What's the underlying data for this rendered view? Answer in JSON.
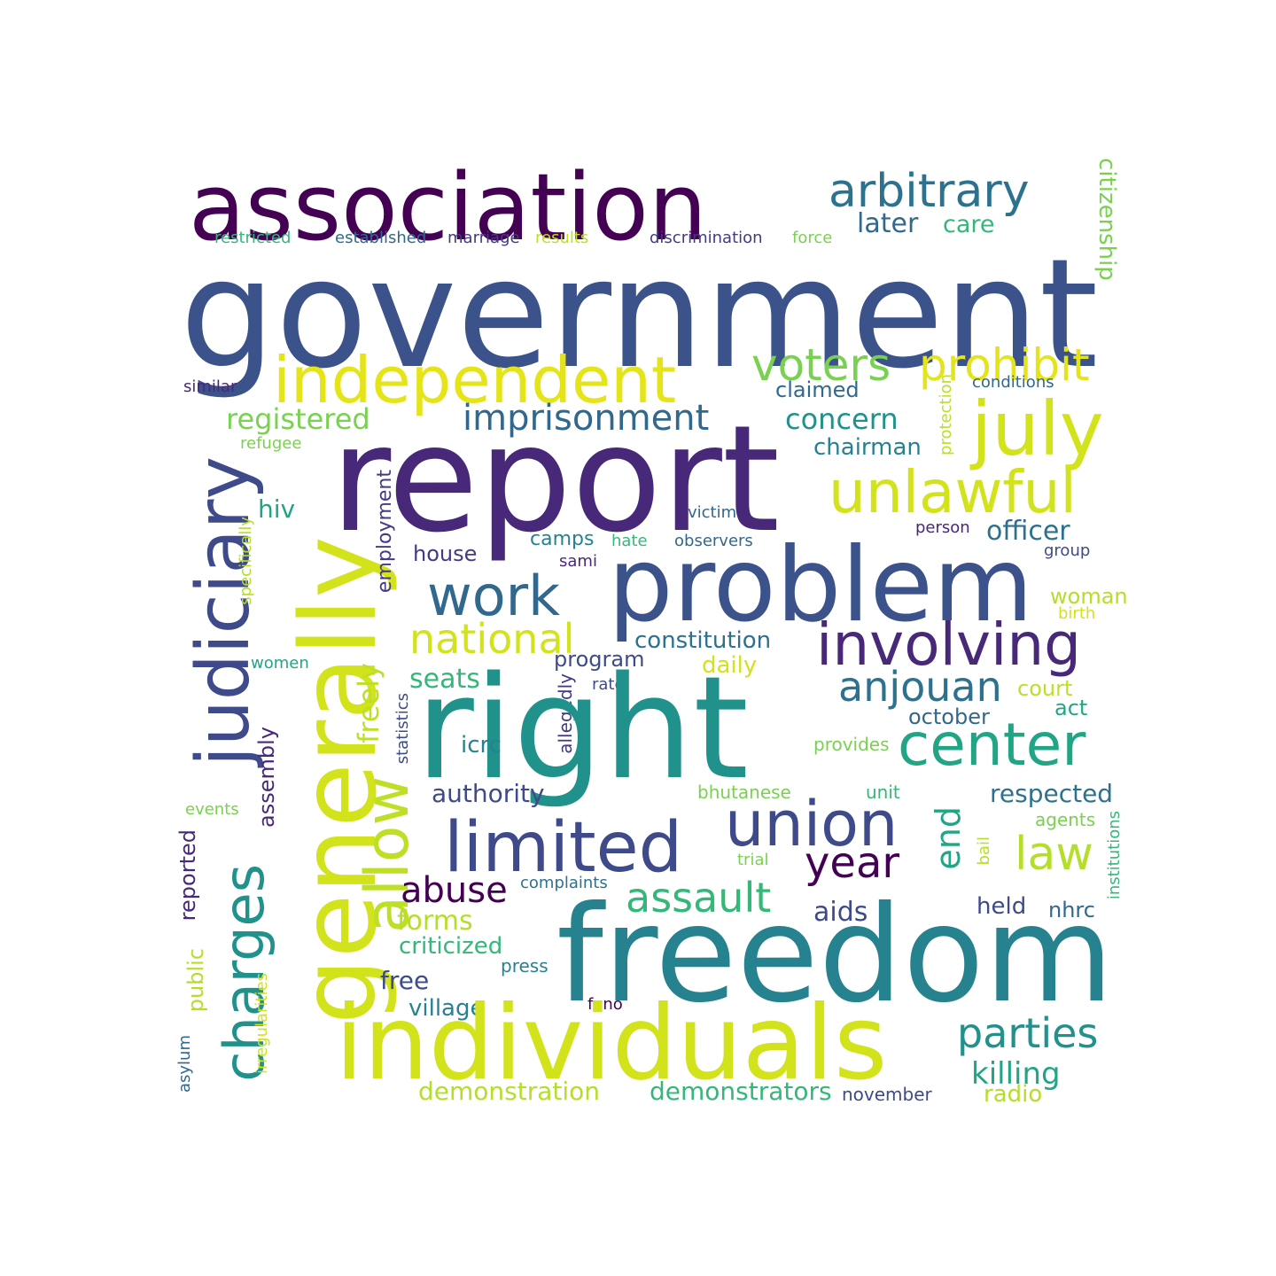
{
  "words": [
    {
      "text": "association",
      "color": "#440154"
    },
    {
      "text": "arbitrary",
      "color": "#2c728e"
    },
    {
      "text": "citizenship",
      "color": "#7ad151"
    },
    {
      "text": "later",
      "color": "#31688e"
    },
    {
      "text": "care",
      "color": "#35b779"
    },
    {
      "text": "restricted",
      "color": "#35b779"
    },
    {
      "text": "established",
      "color": "#31688e"
    },
    {
      "text": "marriage",
      "color": "#443983"
    },
    {
      "text": "results",
      "color": "#bddf26"
    },
    {
      "text": "discrimination",
      "color": "#443983"
    },
    {
      "text": "force",
      "color": "#7ad151"
    },
    {
      "text": "government",
      "color": "#3b528b"
    },
    {
      "text": "independent",
      "color": "#e5e419"
    },
    {
      "text": "voters",
      "color": "#7ad151"
    },
    {
      "text": "prohibit",
      "color": "#e5e419"
    },
    {
      "text": "similar",
      "color": "#482878"
    },
    {
      "text": "claimed",
      "color": "#31688e"
    },
    {
      "text": "conditions",
      "color": "#31688e"
    },
    {
      "text": "protection",
      "color": "#bddf26"
    },
    {
      "text": "registered",
      "color": "#7ad151"
    },
    {
      "text": "imprisonment",
      "color": "#31688e"
    },
    {
      "text": "concern",
      "color": "#21918c"
    },
    {
      "text": "july",
      "color": "#d2e21b"
    },
    {
      "text": "refugee",
      "color": "#7ad151"
    },
    {
      "text": "report",
      "color": "#482878"
    },
    {
      "text": "chairman",
      "color": "#26828e"
    },
    {
      "text": "judiciary",
      "color": "#3e4a89"
    },
    {
      "text": "unlawful",
      "color": "#d2e21b"
    },
    {
      "text": "hiv",
      "color": "#21a585"
    },
    {
      "text": "generally",
      "color": "#d2e21b"
    },
    {
      "text": "employment",
      "color": "#443983"
    },
    {
      "text": "victim",
      "color": "#31688e"
    },
    {
      "text": "specifically",
      "color": "#b5de2b"
    },
    {
      "text": "person",
      "color": "#482878"
    },
    {
      "text": "observers",
      "color": "#31688e"
    },
    {
      "text": "officer",
      "color": "#2c728e"
    },
    {
      "text": "camps",
      "color": "#26828e"
    },
    {
      "text": "hate",
      "color": "#35b779"
    },
    {
      "text": "house",
      "color": "#443983"
    },
    {
      "text": "group",
      "color": "#3e4a89"
    },
    {
      "text": "sami",
      "color": "#482878"
    },
    {
      "text": "problem",
      "color": "#3b528b"
    },
    {
      "text": "work",
      "color": "#31688e"
    },
    {
      "text": "woman",
      "color": "#b5de2b"
    },
    {
      "text": "birth",
      "color": "#d2e21b"
    },
    {
      "text": "national",
      "color": "#d2e21b"
    },
    {
      "text": "involving",
      "color": "#482878"
    },
    {
      "text": "constitution",
      "color": "#2c728e"
    },
    {
      "text": "women",
      "color": "#21a585"
    },
    {
      "text": "program",
      "color": "#3e4a89"
    },
    {
      "text": "daily",
      "color": "#d2e21b"
    },
    {
      "text": "rate",
      "color": "#3e4a89"
    },
    {
      "text": "seats",
      "color": "#35b779"
    },
    {
      "text": "anjouan",
      "color": "#2c728e"
    },
    {
      "text": "court",
      "color": "#bddf26"
    },
    {
      "text": "freely",
      "color": "#bddf26"
    },
    {
      "text": "allegedly",
      "color": "#443983"
    },
    {
      "text": "act",
      "color": "#21a585"
    },
    {
      "text": "october",
      "color": "#31688e"
    },
    {
      "text": "right",
      "color": "#21918c"
    },
    {
      "text": "statistics",
      "color": "#3e4a89"
    },
    {
      "text": "assembly",
      "color": "#482878"
    },
    {
      "text": "center",
      "color": "#21a585"
    },
    {
      "text": "icrc",
      "color": "#26828e"
    },
    {
      "text": "provides",
      "color": "#7ad151"
    },
    {
      "text": "bhutanese",
      "color": "#7ad151"
    },
    {
      "text": "unit",
      "color": "#35b779"
    },
    {
      "text": "authority",
      "color": "#3e4a89"
    },
    {
      "text": "respected",
      "color": "#2c728e"
    },
    {
      "text": "events",
      "color": "#7ad151"
    },
    {
      "text": "allow",
      "color": "#bddf26"
    },
    {
      "text": "agents",
      "color": "#7ad151"
    },
    {
      "text": "union",
      "color": "#3e4a89"
    },
    {
      "text": "end",
      "color": "#21a585"
    },
    {
      "text": "limited",
      "color": "#3e4a89"
    },
    {
      "text": "reported",
      "color": "#482878"
    },
    {
      "text": "bail",
      "color": "#b5de2b"
    },
    {
      "text": "institutions",
      "color": "#35b779"
    },
    {
      "text": "year",
      "color": "#440154"
    },
    {
      "text": "trial",
      "color": "#7ad151"
    },
    {
      "text": "law",
      "color": "#b5de2b"
    },
    {
      "text": "charges",
      "color": "#21918c"
    },
    {
      "text": "abuse",
      "color": "#440154"
    },
    {
      "text": "complaints",
      "color": "#2c728e"
    },
    {
      "text": "assault",
      "color": "#35b779"
    },
    {
      "text": "forms",
      "color": "#b5de2b"
    },
    {
      "text": "aids",
      "color": "#3e4a89"
    },
    {
      "text": "held",
      "color": "#3e4a89"
    },
    {
      "text": "nhrc",
      "color": "#31688e"
    },
    {
      "text": "criticized",
      "color": "#35b779"
    },
    {
      "text": "public",
      "color": "#b5de2b"
    },
    {
      "text": "freedom",
      "color": "#26828e"
    },
    {
      "text": "press",
      "color": "#26828e"
    },
    {
      "text": "free",
      "color": "#3e4a89"
    },
    {
      "text": "irregularities",
      "color": "#d2e21b"
    },
    {
      "text": "village",
      "color": "#26828e"
    },
    {
      "text": "fono",
      "color": "#440154"
    },
    {
      "text": "individuals",
      "color": "#d2e21b"
    },
    {
      "text": "parties",
      "color": "#21918c"
    },
    {
      "text": "asylum",
      "color": "#31688e"
    },
    {
      "text": "killing",
      "color": "#21a585"
    },
    {
      "text": "demonstration",
      "color": "#b5de2b"
    },
    {
      "text": "demonstrators",
      "color": "#35b779"
    },
    {
      "text": "november",
      "color": "#3e4a89"
    },
    {
      "text": "radio",
      "color": "#b5de2b"
    }
  ]
}
